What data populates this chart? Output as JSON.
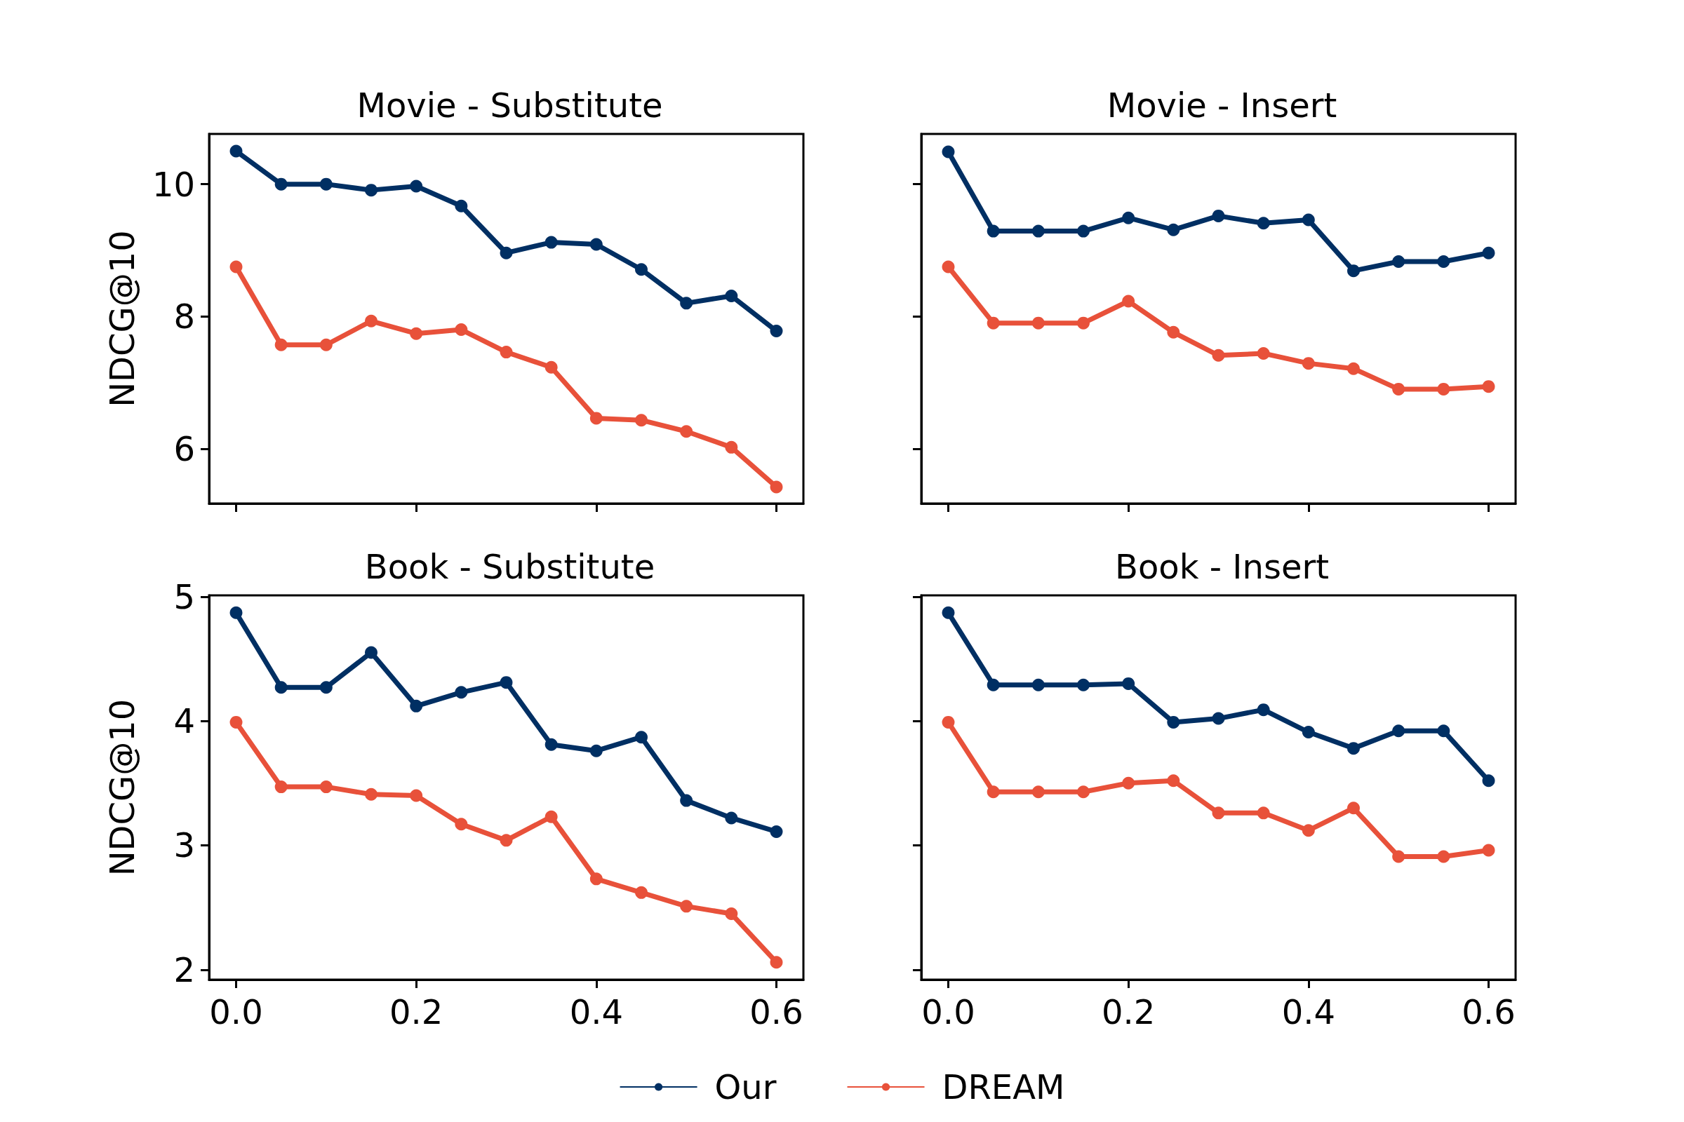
{
  "chart_data": [
    {
      "type": "line",
      "title": "Movie - Substitute",
      "ylabel": "NDCG@10",
      "x": [
        0,
        0.05,
        0.1,
        0.15,
        0.2,
        0.25,
        0.3,
        0.35,
        0.4,
        0.45,
        0.5,
        0.55,
        0.6
      ],
      "xlim": [
        -0.03,
        0.63
      ],
      "xticks": [
        0,
        0.2,
        0.4,
        0.6
      ],
      "ylim": [
        5.17,
        10.76
      ],
      "yticks": [
        6,
        8,
        10
      ],
      "tick_labels": "y",
      "marker": "circle",
      "line_style": "solid",
      "grid": false,
      "legend": "bottom",
      "series": [
        {
          "name": "Our",
          "color": "#002f63",
          "values": [
            10.5,
            10.0,
            10.0,
            9.91,
            9.97,
            9.67,
            8.96,
            9.12,
            9.09,
            8.71,
            8.2,
            8.31,
            7.78
          ]
        },
        {
          "name": "DREAM",
          "color": "#e8513a",
          "values": [
            8.75,
            7.57,
            7.57,
            7.93,
            7.74,
            7.8,
            7.46,
            7.23,
            6.46,
            6.43,
            6.26,
            6.02,
            5.42
          ]
        }
      ]
    },
    {
      "type": "line",
      "title": "Movie - Insert",
      "x": [
        0,
        0.05,
        0.1,
        0.15,
        0.2,
        0.25,
        0.3,
        0.35,
        0.4,
        0.45,
        0.5,
        0.55,
        0.6
      ],
      "xlim": [
        -0.03,
        0.63
      ],
      "xticks": [
        0,
        0.2,
        0.4,
        0.6
      ],
      "ylim": [
        5.17,
        10.76
      ],
      "yticks": [
        6,
        8,
        10
      ],
      "tick_labels": false,
      "marker": "circle",
      "line_style": "solid",
      "grid": false,
      "series": [
        {
          "name": "Our",
          "color": "#002f63",
          "values": [
            10.49,
            9.29,
            9.29,
            9.29,
            9.49,
            9.31,
            9.52,
            9.41,
            9.46,
            8.69,
            8.83,
            8.83,
            8.96
          ]
        },
        {
          "name": "DREAM",
          "color": "#e8513a",
          "values": [
            8.75,
            7.9,
            7.9,
            7.9,
            8.23,
            7.76,
            7.41,
            7.44,
            7.29,
            7.21,
            6.9,
            6.9,
            6.94
          ]
        }
      ]
    },
    {
      "type": "line",
      "title": "Book - Substitute",
      "ylabel": "NDCG@10",
      "x": [
        0,
        0.05,
        0.1,
        0.15,
        0.2,
        0.25,
        0.3,
        0.35,
        0.4,
        0.45,
        0.5,
        0.55,
        0.6
      ],
      "xlim": [
        -0.03,
        0.63
      ],
      "xticks": [
        {
          "value": 0,
          "label": "0.0"
        },
        0.2,
        0.4,
        0.6
      ],
      "ylim": [
        1.92,
        5.01
      ],
      "yticks": [
        2,
        3,
        4,
        5
      ],
      "marker": "circle",
      "line_style": "solid",
      "grid": false,
      "series": [
        {
          "name": "Our",
          "color": "#002f63",
          "values": [
            4.87,
            4.27,
            4.27,
            4.55,
            4.12,
            4.23,
            4.31,
            3.81,
            3.76,
            3.87,
            3.36,
            3.22,
            3.11
          ]
        },
        {
          "name": "DREAM",
          "color": "#e8513a",
          "values": [
            3.99,
            3.47,
            3.47,
            3.41,
            3.4,
            3.17,
            3.04,
            3.23,
            2.73,
            2.62,
            2.51,
            2.45,
            2.06
          ]
        }
      ]
    },
    {
      "type": "line",
      "title": "Book - Insert",
      "x": [
        0,
        0.05,
        0.1,
        0.15,
        0.2,
        0.25,
        0.3,
        0.35,
        0.4,
        0.45,
        0.5,
        0.55,
        0.6
      ],
      "xlim": [
        -0.03,
        0.63
      ],
      "xticks": [
        {
          "value": 0,
          "label": "0.0"
        },
        0.2,
        0.4,
        0.6
      ],
      "ylim": [
        1.92,
        5.01
      ],
      "yticks": [
        2,
        3,
        4,
        5
      ],
      "tick_labels": "x",
      "marker": "circle",
      "line_style": "solid",
      "grid": false,
      "series": [
        {
          "name": "Our",
          "color": "#002f63",
          "values": [
            4.87,
            4.29,
            4.29,
            4.29,
            4.3,
            3.99,
            4.02,
            4.09,
            3.91,
            3.78,
            3.92,
            3.92,
            3.52
          ]
        },
        {
          "name": "DREAM",
          "color": "#e8513a",
          "values": [
            3.99,
            3.43,
            3.43,
            3.43,
            3.5,
            3.52,
            3.26,
            3.26,
            3.12,
            3.3,
            2.91,
            2.91,
            2.96
          ]
        }
      ]
    }
  ]
}
